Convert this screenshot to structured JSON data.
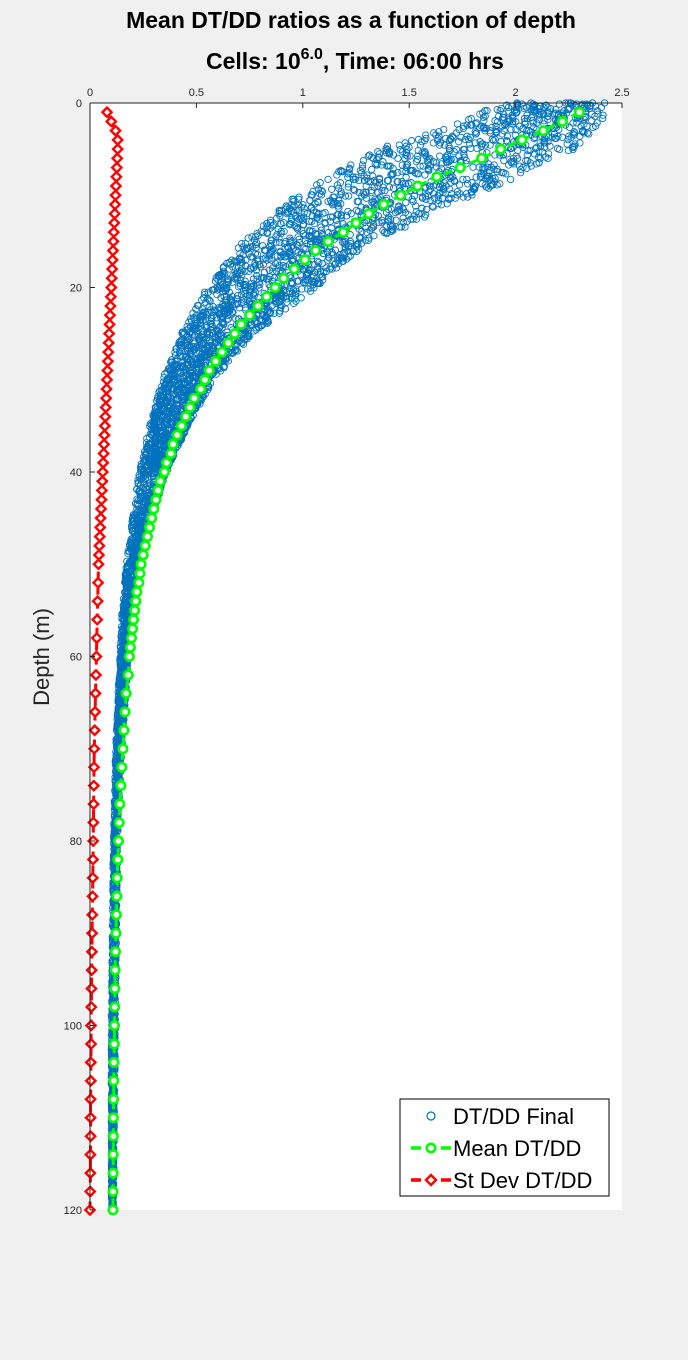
{
  "chart_data": {
    "type": "scatter",
    "title_line1": "Mean DT/DD ratios as a function of depth",
    "title_line2_prefix": "Cells: 10",
    "title_line2_exponent": "6.0",
    "title_line2_suffix": ", Time: 06:00 hrs",
    "xlabel": "",
    "ylabel": "Depth (m)",
    "xlim": [
      0,
      2.5
    ],
    "ylim": [
      0,
      120
    ],
    "y_reversed": true,
    "x_axis_location": "top",
    "x_ticks": [
      "0",
      "0.5",
      "1",
      "1.5",
      "2",
      "2.5"
    ],
    "y_ticks": [
      "0",
      "20",
      "40",
      "60",
      "80",
      "100",
      "120"
    ],
    "grid": false,
    "legend_position": "bottom-right",
    "series": [
      {
        "name": "DT/DD Final",
        "marker": "circle-open",
        "color": "#0072BD",
        "band_points": [
          {
            "depth": 0,
            "x_min": 1.92,
            "x_max": 2.42
          },
          {
            "depth": 2,
            "x_min": 1.76,
            "x_max": 2.41
          },
          {
            "depth": 5,
            "x_min": 1.35,
            "x_max": 2.28
          },
          {
            "depth": 10,
            "x_min": 0.97,
            "x_max": 1.82
          },
          {
            "depth": 15,
            "x_min": 0.72,
            "x_max": 1.33
          },
          {
            "depth": 20,
            "x_min": 0.55,
            "x_max": 1.06
          },
          {
            "depth": 25,
            "x_min": 0.43,
            "x_max": 0.77
          },
          {
            "depth": 30,
            "x_min": 0.34,
            "x_max": 0.58
          },
          {
            "depth": 35,
            "x_min": 0.28,
            "x_max": 0.46
          },
          {
            "depth": 40,
            "x_min": 0.23,
            "x_max": 0.36
          },
          {
            "depth": 45,
            "x_min": 0.2,
            "x_max": 0.29
          },
          {
            "depth": 50,
            "x_min": 0.17,
            "x_max": 0.24
          },
          {
            "depth": 55,
            "x_min": 0.15,
            "x_max": 0.21
          },
          {
            "depth": 60,
            "x_min": 0.14,
            "x_max": 0.18
          },
          {
            "depth": 70,
            "x_min": 0.12,
            "x_max": 0.15
          },
          {
            "depth": 80,
            "x_min": 0.11,
            "x_max": 0.13
          },
          {
            "depth": 100,
            "x_min": 0.1,
            "x_max": 0.12
          },
          {
            "depth": 120,
            "x_min": 0.1,
            "x_max": 0.11
          }
        ]
      },
      {
        "name": "Mean DT/DD",
        "marker": "circle",
        "line": "dashed",
        "color": "#00FF00",
        "points": [
          [
            2.3,
            1
          ],
          [
            2.22,
            2
          ],
          [
            2.13,
            3
          ],
          [
            2.03,
            4
          ],
          [
            1.93,
            5
          ],
          [
            1.84,
            6
          ],
          [
            1.74,
            7
          ],
          [
            1.63,
            8
          ],
          [
            1.54,
            9
          ],
          [
            1.46,
            10
          ],
          [
            1.38,
            11
          ],
          [
            1.31,
            12
          ],
          [
            1.25,
            13
          ],
          [
            1.19,
            14
          ],
          [
            1.12,
            15
          ],
          [
            1.06,
            16
          ],
          [
            1.01,
            17
          ],
          [
            0.96,
            18
          ],
          [
            0.91,
            19
          ],
          [
            0.87,
            20
          ],
          [
            0.83,
            21
          ],
          [
            0.79,
            22
          ],
          [
            0.75,
            23
          ],
          [
            0.71,
            24
          ],
          [
            0.68,
            25
          ],
          [
            0.65,
            26
          ],
          [
            0.62,
            27
          ],
          [
            0.59,
            28
          ],
          [
            0.56,
            29
          ],
          [
            0.54,
            30
          ],
          [
            0.52,
            31
          ],
          [
            0.49,
            32
          ],
          [
            0.47,
            33
          ],
          [
            0.45,
            34
          ],
          [
            0.43,
            35
          ],
          [
            0.41,
            36
          ],
          [
            0.39,
            37
          ],
          [
            0.38,
            38
          ],
          [
            0.36,
            39
          ],
          [
            0.35,
            40
          ],
          [
            0.33,
            41
          ],
          [
            0.32,
            42
          ],
          [
            0.31,
            43
          ],
          [
            0.3,
            44
          ],
          [
            0.29,
            45
          ],
          [
            0.28,
            46
          ],
          [
            0.27,
            47
          ],
          [
            0.26,
            48
          ],
          [
            0.25,
            49
          ],
          [
            0.24,
            50
          ],
          [
            0.235,
            51
          ],
          [
            0.23,
            52
          ],
          [
            0.22,
            53
          ],
          [
            0.215,
            54
          ],
          [
            0.21,
            55
          ],
          [
            0.205,
            56
          ],
          [
            0.2,
            57
          ],
          [
            0.195,
            58
          ],
          [
            0.19,
            59
          ],
          [
            0.185,
            60
          ],
          [
            0.18,
            62
          ],
          [
            0.17,
            64
          ],
          [
            0.165,
            66
          ],
          [
            0.16,
            68
          ],
          [
            0.155,
            70
          ],
          [
            0.15,
            72
          ],
          [
            0.145,
            74
          ],
          [
            0.14,
            76
          ],
          [
            0.137,
            78
          ],
          [
            0.134,
            80
          ],
          [
            0.131,
            82
          ],
          [
            0.128,
            84
          ],
          [
            0.126,
            86
          ],
          [
            0.124,
            88
          ],
          [
            0.122,
            90
          ],
          [
            0.12,
            92
          ],
          [
            0.118,
            94
          ],
          [
            0.117,
            96
          ],
          [
            0.116,
            98
          ],
          [
            0.115,
            100
          ],
          [
            0.114,
            102
          ],
          [
            0.113,
            104
          ],
          [
            0.112,
            106
          ],
          [
            0.111,
            108
          ],
          [
            0.11,
            110
          ],
          [
            0.11,
            112
          ],
          [
            0.109,
            114
          ],
          [
            0.109,
            116
          ],
          [
            0.108,
            118
          ],
          [
            0.108,
            120
          ]
        ]
      },
      {
        "name": "St Dev DT/DD",
        "marker": "diamond",
        "line": "dashed",
        "color": "#FF0000",
        "points": [
          [
            0.08,
            1
          ],
          [
            0.1,
            2
          ],
          [
            0.12,
            3
          ],
          [
            0.13,
            4
          ],
          [
            0.13,
            5
          ],
          [
            0.128,
            6
          ],
          [
            0.126,
            7
          ],
          [
            0.124,
            8
          ],
          [
            0.122,
            9
          ],
          [
            0.12,
            10
          ],
          [
            0.118,
            11
          ],
          [
            0.116,
            12
          ],
          [
            0.114,
            13
          ],
          [
            0.112,
            14
          ],
          [
            0.11,
            15
          ],
          [
            0.108,
            16
          ],
          [
            0.106,
            17
          ],
          [
            0.104,
            18
          ],
          [
            0.102,
            19
          ],
          [
            0.1,
            20
          ],
          [
            0.098,
            21
          ],
          [
            0.096,
            22
          ],
          [
            0.094,
            23
          ],
          [
            0.092,
            24
          ],
          [
            0.09,
            25
          ],
          [
            0.088,
            26
          ],
          [
            0.086,
            27
          ],
          [
            0.084,
            28
          ],
          [
            0.082,
            29
          ],
          [
            0.08,
            30
          ],
          [
            0.078,
            31
          ],
          [
            0.076,
            32
          ],
          [
            0.074,
            33
          ],
          [
            0.072,
            34
          ],
          [
            0.07,
            35
          ],
          [
            0.068,
            36
          ],
          [
            0.066,
            37
          ],
          [
            0.064,
            38
          ],
          [
            0.062,
            39
          ],
          [
            0.06,
            40
          ],
          [
            0.058,
            41
          ],
          [
            0.056,
            42
          ],
          [
            0.054,
            43
          ],
          [
            0.052,
            44
          ],
          [
            0.05,
            45
          ],
          [
            0.048,
            46
          ],
          [
            0.046,
            47
          ],
          [
            0.044,
            48
          ],
          [
            0.042,
            49
          ],
          [
            0.04,
            50
          ],
          [
            0.038,
            52
          ],
          [
            0.036,
            54
          ],
          [
            0.034,
            56
          ],
          [
            0.032,
            58
          ],
          [
            0.03,
            60
          ],
          [
            0.028,
            62
          ],
          [
            0.026,
            64
          ],
          [
            0.024,
            66
          ],
          [
            0.022,
            68
          ],
          [
            0.02,
            70
          ],
          [
            0.019,
            72
          ],
          [
            0.018,
            74
          ],
          [
            0.017,
            76
          ],
          [
            0.016,
            78
          ],
          [
            0.015,
            80
          ],
          [
            0.014,
            82
          ],
          [
            0.013,
            84
          ],
          [
            0.012,
            86
          ],
          [
            0.011,
            88
          ],
          [
            0.01,
            90
          ],
          [
            0.009,
            92
          ],
          [
            0.008,
            94
          ],
          [
            0.007,
            96
          ],
          [
            0.006,
            98
          ],
          [
            0.005,
            100
          ],
          [
            0.005,
            102
          ],
          [
            0.004,
            104
          ],
          [
            0.004,
            106
          ],
          [
            0.003,
            108
          ],
          [
            0.003,
            110
          ],
          [
            0.003,
            112
          ],
          [
            0.002,
            114
          ],
          [
            0.002,
            116
          ],
          [
            0.001,
            118
          ],
          [
            0.0,
            120
          ]
        ]
      }
    ]
  },
  "colors": {
    "figure_background": "#f0f0f0",
    "axes_background": "#ffffff",
    "scatter": "#0072BD",
    "mean": "#00FF00",
    "stdev": "#FF0000"
  }
}
